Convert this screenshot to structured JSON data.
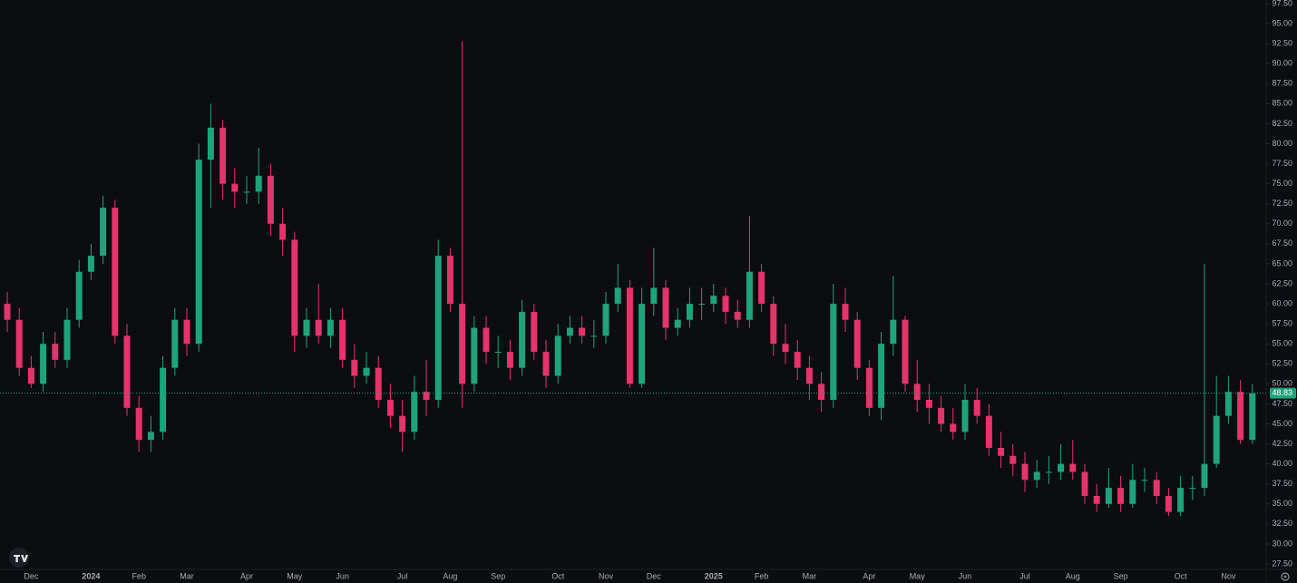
{
  "chart_data": {
    "type": "candlestick",
    "up_color": "#1fa37a",
    "down_color": "#e5336b",
    "ylim": [
      27.5,
      97.5
    ],
    "yticks": [
      {
        "value": 27.5,
        "label": "27.50"
      },
      {
        "value": 30,
        "label": "30.00"
      },
      {
        "value": 32.5,
        "label": "32.50"
      },
      {
        "value": 35,
        "label": "35.00"
      },
      {
        "value": 37.5,
        "label": "37.50"
      },
      {
        "value": 40,
        "label": "40.00"
      },
      {
        "value": 42.5,
        "label": "42.50"
      },
      {
        "value": 45,
        "label": "45.00"
      },
      {
        "value": 47.5,
        "label": "47.50"
      },
      {
        "value": 50,
        "label": "50.00"
      },
      {
        "value": 52.5,
        "label": "52.50"
      },
      {
        "value": 55,
        "label": "55.00"
      },
      {
        "value": 57.5,
        "label": "57.50"
      },
      {
        "value": 60,
        "label": "60.00"
      },
      {
        "value": 62.5,
        "label": "62.50"
      },
      {
        "value": 65,
        "label": "65.00"
      },
      {
        "value": 67.5,
        "label": "67.50"
      },
      {
        "value": 70,
        "label": "70.00"
      },
      {
        "value": 72.5,
        "label": "72.50"
      },
      {
        "value": 75,
        "label": "75.00"
      },
      {
        "value": 77.5,
        "label": "77.50"
      },
      {
        "value": 80,
        "label": "80.00"
      },
      {
        "value": 82.5,
        "label": "82.50"
      },
      {
        "value": 85,
        "label": "85.00"
      },
      {
        "value": 87.5,
        "label": "87.50"
      },
      {
        "value": 90,
        "label": "90.00"
      },
      {
        "value": 92.5,
        "label": "92.50"
      },
      {
        "value": 95,
        "label": "95.00"
      },
      {
        "value": 97.5,
        "label": "97.50"
      }
    ],
    "categories": [
      null,
      null,
      "Dec",
      null,
      null,
      null,
      null,
      "2024",
      null,
      null,
      null,
      "Feb",
      null,
      null,
      null,
      "Mar",
      null,
      null,
      null,
      null,
      "Apr",
      null,
      null,
      null,
      "May",
      null,
      null,
      null,
      "Jun",
      null,
      null,
      null,
      null,
      "Jul",
      null,
      null,
      null,
      "Aug",
      null,
      null,
      null,
      "Sep",
      null,
      null,
      null,
      null,
      "Oct",
      null,
      null,
      null,
      "Nov",
      null,
      null,
      null,
      "Dec",
      null,
      null,
      null,
      null,
      "2025",
      null,
      null,
      null,
      "Feb",
      null,
      null,
      null,
      "Mar",
      null,
      null,
      null,
      null,
      "Apr",
      null,
      null,
      null,
      "May",
      null,
      null,
      null,
      "Jun",
      null,
      null,
      null,
      null,
      "Jul",
      null,
      null,
      null,
      "Aug",
      null,
      null,
      null,
      "Sep",
      null,
      null,
      null,
      null,
      "Oct",
      null,
      null,
      null,
      "Nov",
      null,
      null
    ],
    "open": [
      60,
      58,
      52,
      50,
      55,
      53,
      58,
      64,
      66,
      72,
      56,
      47,
      43,
      44,
      52,
      58,
      55,
      78,
      82,
      75,
      74,
      74,
      76,
      70,
      68,
      56,
      58,
      56,
      58,
      53,
      51,
      52,
      48,
      46,
      44,
      49,
      48,
      66,
      60,
      50,
      57,
      54,
      54,
      52,
      59,
      54,
      51,
      56,
      57,
      56,
      56,
      60,
      62,
      50,
      60,
      62,
      57,
      58,
      60,
      60,
      61,
      59,
      58,
      64,
      60,
      55,
      54,
      52,
      50,
      48,
      60,
      58,
      52,
      47,
      55,
      58,
      50,
      48,
      47,
      45,
      44,
      48,
      46,
      42,
      41,
      40,
      38,
      39,
      39,
      40,
      39,
      36,
      35,
      37,
      35,
      38,
      38,
      36,
      34,
      37,
      37,
      40,
      46,
      49,
      43
    ],
    "high": [
      61.5,
      59.5,
      53.5,
      56.5,
      56.5,
      59.5,
      65.5,
      67.5,
      73.5,
      73,
      57.5,
      48.5,
      46,
      53.5,
      59.5,
      59.5,
      80,
      85,
      83,
      77,
      76,
      79.5,
      77.5,
      72,
      69,
      59.5,
      62.5,
      59.5,
      59.5,
      55,
      54,
      53.5,
      50,
      48,
      51,
      53,
      68,
      67,
      92.8,
      58.5,
      58.5,
      56,
      55.5,
      60.5,
      60,
      55.5,
      57.5,
      58.5,
      58.5,
      58,
      61.5,
      65,
      63,
      62,
      67,
      63,
      59.5,
      62,
      62,
      62.5,
      62,
      60.5,
      71,
      65,
      61,
      57.5,
      55.5,
      53.5,
      51.5,
      62.5,
      62,
      59,
      53,
      56.5,
      63.5,
      58.5,
      53,
      50,
      48.5,
      47,
      50,
      49.5,
      47.5,
      44,
      42.5,
      41.5,
      40.5,
      41,
      42.5,
      43,
      40,
      37.5,
      39.5,
      38.5,
      40,
      39.5,
      39,
      37,
      38.5,
      38.5,
      65,
      51,
      51,
      50.5,
      50
    ],
    "low": [
      56.5,
      51,
      49.5,
      49,
      52,
      52,
      57,
      63,
      65,
      55,
      46,
      41.5,
      41.5,
      43,
      51,
      53.5,
      54,
      72,
      73,
      72,
      72.5,
      72.5,
      68.5,
      66,
      54,
      54.5,
      55,
      54.5,
      52,
      49.5,
      50,
      47,
      44.5,
      41.5,
      43,
      46,
      47,
      59,
      47,
      49,
      52.5,
      52,
      50.5,
      51,
      53,
      49.5,
      50,
      55,
      55,
      54.5,
      55,
      59,
      49.5,
      49.5,
      58.5,
      55.5,
      56,
      57,
      58,
      59,
      57.5,
      57,
      57,
      59,
      53.5,
      52.5,
      50.5,
      48,
      46.5,
      47,
      56.5,
      50.5,
      46,
      45.5,
      53.5,
      49,
      46.5,
      45,
      44,
      43,
      43,
      45,
      41,
      39.5,
      38.5,
      36.5,
      37,
      37.5,
      38,
      38,
      35,
      34,
      34.5,
      34,
      34.5,
      36.5,
      35,
      33.5,
      33.5,
      35.5,
      36,
      39.5,
      45,
      42.5,
      42.5
    ],
    "close": [
      58,
      52,
      50,
      55,
      53,
      58,
      64,
      66,
      72,
      56,
      47,
      43,
      44,
      52,
      58,
      55,
      78,
      82,
      75,
      74,
      74,
      76,
      70,
      68,
      56,
      58,
      56,
      58,
      53,
      51,
      52,
      48,
      46,
      44,
      49,
      48,
      66,
      60,
      50,
      57,
      54,
      54,
      52,
      59,
      54,
      51,
      56,
      57,
      56,
      56,
      60,
      62,
      50,
      60,
      62,
      57,
      58,
      60,
      60,
      61,
      59,
      58,
      64,
      60,
      55,
      54,
      52,
      50,
      48,
      60,
      58,
      52,
      47,
      55,
      58,
      50,
      48,
      47,
      45,
      44,
      48,
      46,
      42,
      41,
      40,
      38,
      39,
      39,
      40,
      39,
      36,
      35,
      37,
      35,
      38,
      38,
      36,
      34,
      37,
      37,
      40,
      46,
      49,
      43,
      48.83
    ]
  }
}
